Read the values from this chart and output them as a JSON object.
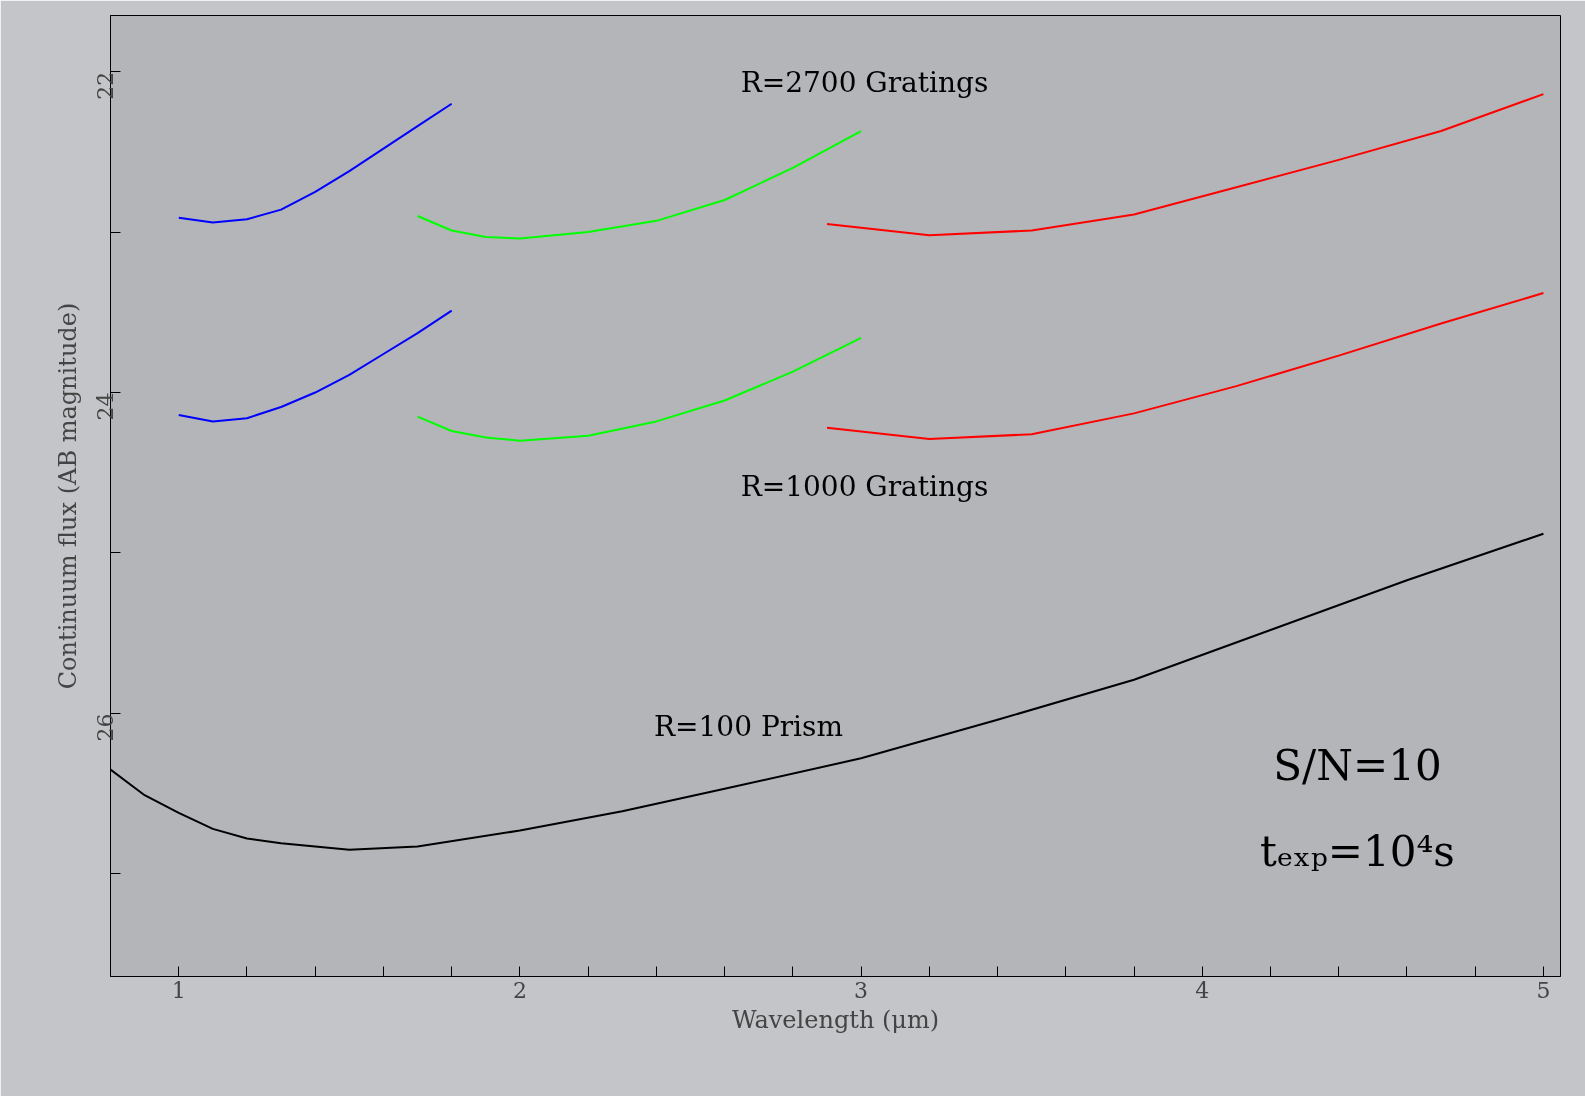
{
  "chart_data": {
    "type": "line",
    "xlabel": "Wavelength (μm)",
    "ylabel": "Continuum flux (AB magnitude)",
    "xlim": [
      0.8,
      5.05
    ],
    "ylim": [
      27.64,
      21.65
    ],
    "xticks": [
      1,
      {
        "value": 1.2,
        "label": null
      },
      {
        "value": 1.4,
        "label": null
      },
      {
        "value": 1.6,
        "label": null
      },
      {
        "value": 1.8,
        "label": null
      },
      2,
      {
        "value": 2.2,
        "label": null
      },
      {
        "value": 2.4,
        "label": null
      },
      {
        "value": 2.6,
        "label": null
      },
      {
        "value": 2.8,
        "label": null
      },
      3,
      {
        "value": 3.2,
        "label": null
      },
      {
        "value": 3.4,
        "label": null
      },
      {
        "value": 3.6,
        "label": null
      },
      {
        "value": 3.8,
        "label": null
      },
      4,
      {
        "value": 4.2,
        "label": null
      },
      {
        "value": 4.4,
        "label": null
      },
      {
        "value": 4.6,
        "label": null
      },
      {
        "value": 4.8,
        "label": null
      },
      5
    ],
    "yticks": [
      22,
      {
        "value": 23,
        "label": null
      },
      24,
      {
        "value": 25,
        "label": null
      },
      26,
      {
        "value": 27,
        "label": null
      }
    ],
    "grid": false,
    "marker": "none",
    "line_style": "solid",
    "series": [
      {
        "color": "#0000ff",
        "x": [
          1.0,
          1.1,
          1.2,
          1.3,
          1.4,
          1.5,
          1.6,
          1.7,
          1.8
        ],
        "values": [
          22.91,
          22.94,
          22.92,
          22.86,
          22.75,
          22.62,
          22.48,
          22.34,
          22.2
        ]
      },
      {
        "color": "#0000ff",
        "x": [
          1.0,
          1.1,
          1.2,
          1.3,
          1.4,
          1.5,
          1.6,
          1.7,
          1.8
        ],
        "values": [
          24.14,
          24.18,
          24.16,
          24.09,
          24.0,
          23.89,
          23.76,
          23.63,
          23.49
        ]
      },
      {
        "color": "#00ff00",
        "x": [
          1.7,
          1.8,
          1.9,
          2.0,
          2.2,
          2.4,
          2.6,
          2.8,
          3.0
        ],
        "values": [
          22.9,
          22.99,
          23.03,
          23.04,
          23.0,
          22.93,
          22.8,
          22.6,
          22.37
        ]
      },
      {
        "color": "#00ff00",
        "x": [
          1.7,
          1.8,
          1.9,
          2.0,
          2.2,
          2.4,
          2.6,
          2.8,
          3.0
        ],
        "values": [
          24.15,
          24.24,
          24.28,
          24.3,
          24.27,
          24.18,
          24.05,
          23.87,
          23.66
        ]
      },
      {
        "color": "#ff0000",
        "x": [
          2.9,
          3.2,
          3.5,
          3.8,
          4.1,
          4.4,
          4.7,
          5.0
        ],
        "values": [
          22.95,
          23.02,
          22.99,
          22.89,
          22.72,
          22.55,
          22.37,
          22.14
        ]
      },
      {
        "color": "#ff0000",
        "x": [
          2.9,
          3.2,
          3.5,
          3.8,
          4.1,
          4.4,
          4.7,
          5.0
        ],
        "values": [
          24.22,
          24.29,
          24.26,
          24.13,
          23.96,
          23.77,
          23.57,
          23.38
        ]
      },
      {
        "color": "#000000",
        "x": [
          0.8,
          0.9,
          1.0,
          1.1,
          1.2,
          1.3,
          1.5,
          1.7,
          2.0,
          2.3,
          2.6,
          3.0,
          3.4,
          3.8,
          4.2,
          4.6,
          5.0
        ],
        "values": [
          26.35,
          26.51,
          26.62,
          26.72,
          26.78,
          26.81,
          26.85,
          26.83,
          26.73,
          26.61,
          26.47,
          26.28,
          26.04,
          25.79,
          25.48,
          25.17,
          24.88
        ]
      }
    ],
    "annotations": [
      "R=2700 Gratings",
      "R=1000 Gratings",
      "R=100 Prism",
      "S/N=10",
      "tₑₓₚ=10⁴s"
    ]
  }
}
